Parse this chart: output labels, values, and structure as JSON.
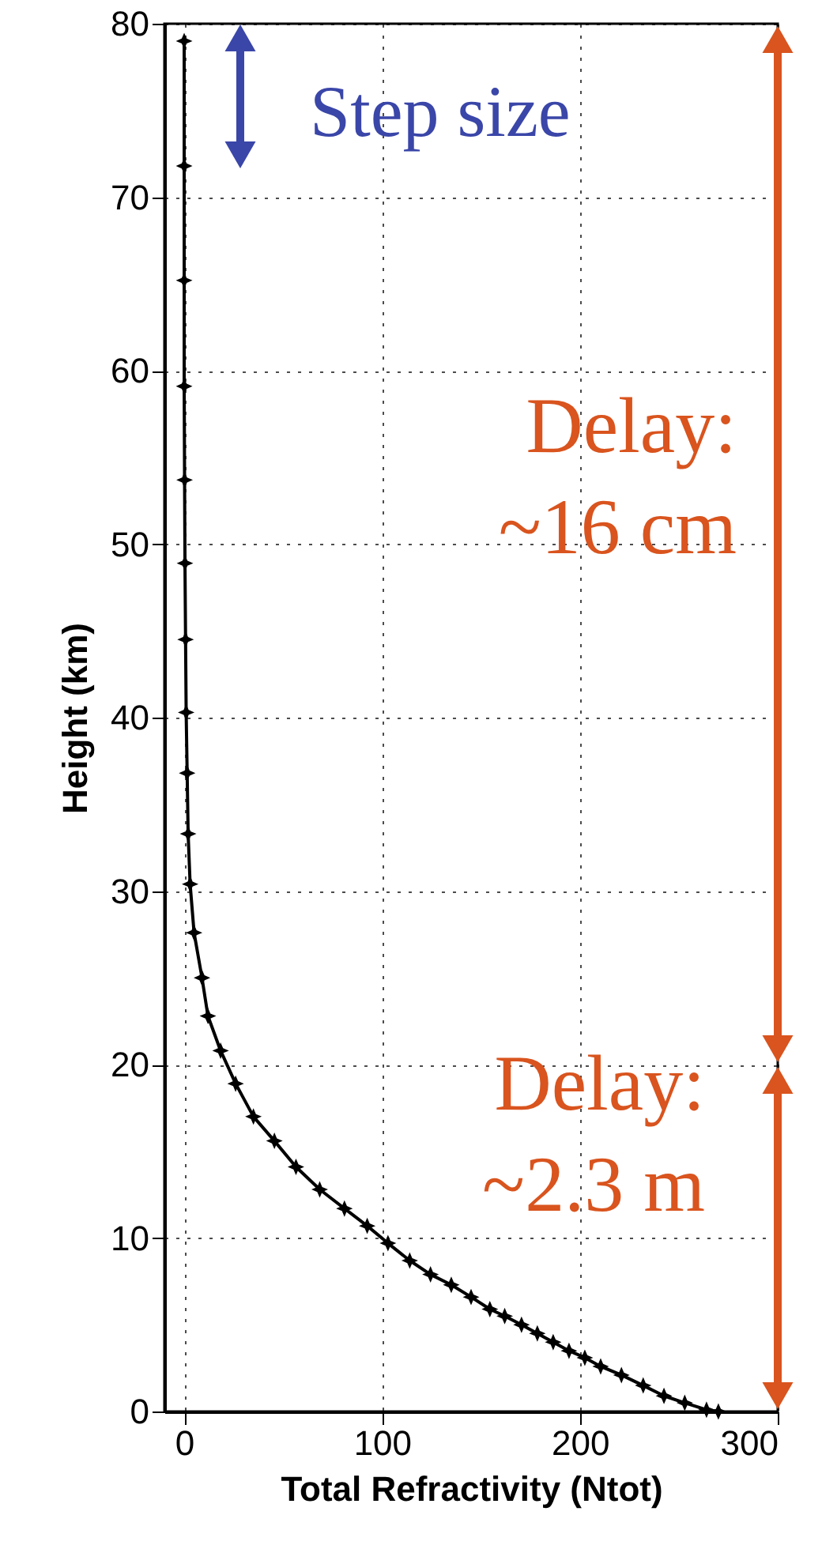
{
  "chart_data": {
    "type": "line",
    "xlabel": "Total Refractivity (Ntot)",
    "ylabel": "Height (km)",
    "xlim": [
      -10,
      300
    ],
    "xticks": [
      0,
      100,
      200,
      300
    ],
    "ylim": [
      0,
      80
    ],
    "yticks": [
      0,
      10,
      20,
      30,
      40,
      50,
      60,
      70,
      80
    ],
    "grid": true,
    "marker": "star",
    "line_style": "solid",
    "series": [
      {
        "color": "#000000",
        "x": [
          0,
          0,
          0,
          0,
          0.2,
          0.4,
          0.7,
          1,
          1.5,
          2,
          3,
          5,
          9,
          12,
          18.4,
          26,
          35,
          45.6,
          56.5,
          68.5,
          81,
          92.5,
          103,
          114,
          124.5,
          135,
          145,
          154.5,
          162,
          170.5,
          178.5,
          186.5,
          194.5,
          202.5,
          210.5,
          221,
          232,
          242.5,
          253,
          264,
          270
        ],
        "values": [
          79,
          71.8,
          65.2,
          59.1,
          53.7,
          48.9,
          44.5,
          40.3,
          36.8,
          33.3,
          30.4,
          27.6,
          25,
          22.8,
          20.8,
          18.9,
          17,
          15.6,
          14.1,
          12.8,
          11.7,
          10.7,
          9.7,
          8.7,
          7.9,
          7.3,
          6.6,
          5.9,
          5.5,
          5,
          4.5,
          4,
          3.5,
          3.1,
          2.6,
          2.1,
          1.5,
          0.9,
          0.5,
          0.1,
          0
        ]
      }
    ],
    "annotations": [
      "Step size",
      "Delay:\n~16 cm",
      "Delay:\n~2.3 m"
    ]
  }
}
